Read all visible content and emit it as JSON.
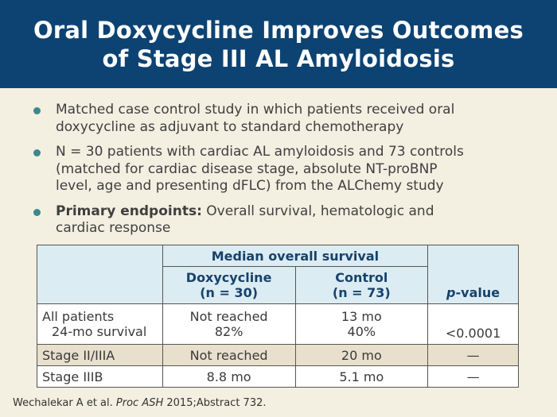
{
  "title": {
    "line1": "Oral Doxycycline Improves Outcomes",
    "line2": "of Stage III AL Amyloidosis"
  },
  "bullets": [
    {
      "lines": [
        "Matched case control study in which patients received oral",
        "doxycycline as adjuvant to standard chemotherapy"
      ]
    },
    {
      "lines": [
        "N = 30 patients with cardiac AL amyloidosis and 73 controls",
        "(matched for cardiac disease stage, absolute NT-proBNP",
        "level, age and presenting dFLC) from the ALChemy study"
      ]
    },
    {
      "bold": "Primary endpoints:",
      "line1_rest": " Overall survival, hematologic and",
      "line2": "cardiac response"
    }
  ],
  "table": {
    "group_header": "Median overall survival",
    "col_doxy_line1": "Doxycycline",
    "col_doxy_line2": "(n = 30)",
    "col_control_line1": "Control",
    "col_control_line2": "(n = 73)",
    "col_p_italic": "p",
    "col_p_rest": "-value",
    "rows": [
      {
        "label_line1": "All patients",
        "label_line2": "24-mo survival",
        "doxy_line1": "Not reached",
        "doxy_line2": "82%",
        "control_line1": "13 mo",
        "control_line2": "40%",
        "p": "<0.0001"
      },
      {
        "label": "Stage II/IIIA",
        "doxy": "Not reached",
        "control": "20 mo",
        "p": "—"
      },
      {
        "label": "Stage IIIB",
        "doxy": "8.8 mo",
        "control": "5.1 mo",
        "p": "—"
      }
    ]
  },
  "footnote": {
    "pre": "Wechalekar A et al. ",
    "italic": "Proc ASH",
    "post": " 2015;Abstract 732."
  },
  "colors": {
    "title_bg": "#0d4373",
    "background": "#f3efe1",
    "bullet": "#3a8a8c",
    "header_bg": "#dcecf3",
    "header_text": "#17426b",
    "row_tan": "#e8e0cc"
  }
}
